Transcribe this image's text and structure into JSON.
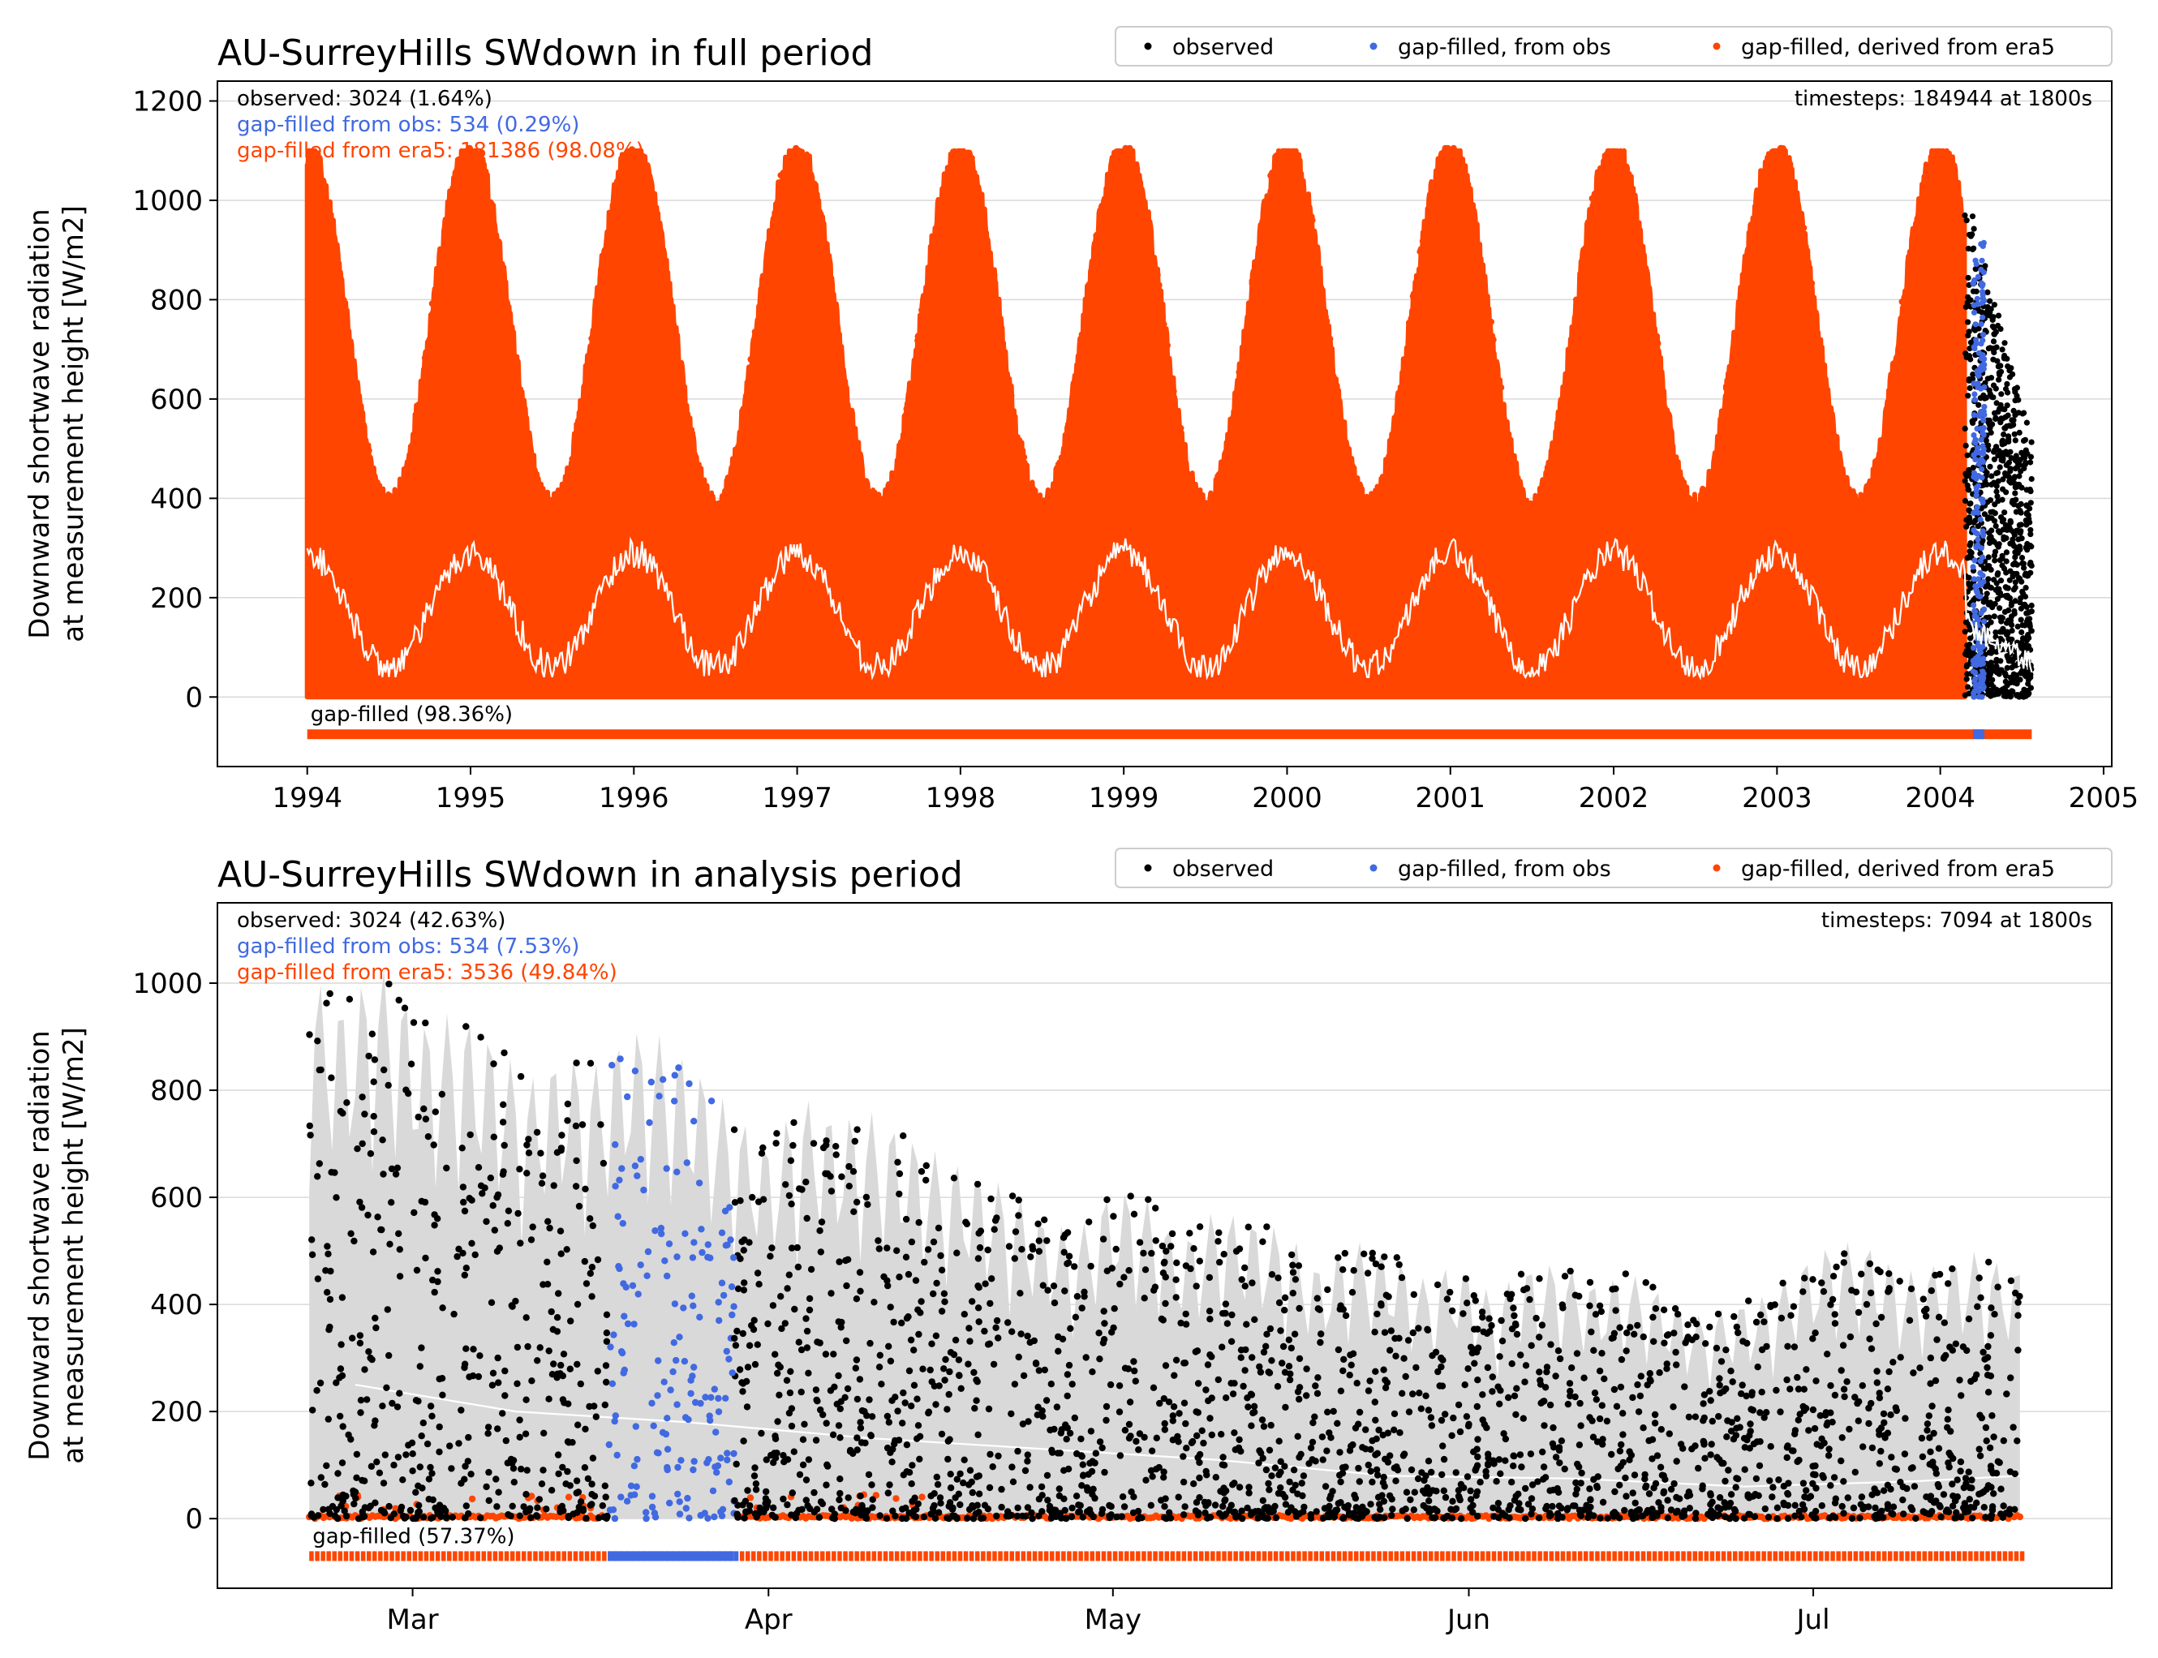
{
  "colors": {
    "observed": "#000000",
    "gapfilled_obs": "#4169e1",
    "gapfilled_era5": "#ff4500",
    "fill_range": "#d9d9d9",
    "smooth_line": "#ffffff",
    "grid": "#d9d9d9"
  },
  "chart_data": [
    {
      "type": "scatter",
      "title": "AU-SurreyHills SWdown in full period",
      "ylabel": "Downward shortwave radiation\nat measurement height [W/m2]",
      "xlim": [
        1993.45,
        2005.05
      ],
      "ylim": [
        -140,
        1240
      ],
      "yticks": [
        0,
        200,
        400,
        600,
        800,
        1000,
        1200
      ],
      "xticks": [
        {
          "v": 1994,
          "label": "1994"
        },
        {
          "v": 1995,
          "label": "1995"
        },
        {
          "v": 1996,
          "label": "1996"
        },
        {
          "v": 1997,
          "label": "1997"
        },
        {
          "v": 1998,
          "label": "1998"
        },
        {
          "v": 1999,
          "label": "1999"
        },
        {
          "v": 2000,
          "label": "2000"
        },
        {
          "v": 2001,
          "label": "2001"
        },
        {
          "v": 2002,
          "label": "2002"
        },
        {
          "v": 2003,
          "label": "2003"
        },
        {
          "v": 2004,
          "label": "2004"
        },
        {
          "v": 2005,
          "label": "2005"
        }
      ],
      "grid": "horizontal",
      "legend": {
        "placement": "top-right, above axes",
        "entries": [
          "observed",
          "gap-filled, from obs",
          "gap-filled, derived from era5"
        ]
      },
      "annotations": {
        "observed": "observed: 3024 (1.64%)",
        "gap_obs": "gap-filled from obs: 534 (0.29%)",
        "gap_era5": "gap-filled from era5: 181386 (98.08%)",
        "timesteps": "timesteps: 184944 at 1800s",
        "gapfilled": "gap-filled (98.36%)"
      },
      "timesteps": 184944,
      "step_seconds": 1800,
      "counts": {
        "observed": 3024,
        "gapfilled_obs": 534,
        "gapfilled_era5": 181386
      },
      "x_range": [
        1994.0,
        2004.56
      ],
      "seasonal_envelope": {
        "series": "gap-filled, derived from era5",
        "x_range": [
          1994.0,
          2004.15
        ],
        "peak_max": 1100,
        "trough_max": 380,
        "peak_phase": "start of each year"
      },
      "observed_range": {
        "x_range": [
          2004.15,
          2004.56
        ],
        "y_range": [
          0,
          1030
        ]
      },
      "gapfilled_obs_range": {
        "x_range": [
          2004.2,
          2004.27
        ],
        "y_range": [
          0,
          920
        ]
      },
      "daily_mean_line": {
        "peak": 330,
        "trough": 60
      }
    },
    {
      "type": "scatter",
      "title": "AU-SurreyHills SWdown in analysis period",
      "ylabel": "Downward shortwave radiation\nat measurement height [W/m2]",
      "xlim": [
        "2004-02-13",
        "2004-07-27"
      ],
      "ylim": [
        -130,
        1150
      ],
      "yticks": [
        0,
        200,
        400,
        600,
        800,
        1000
      ],
      "xticks": [
        {
          "date": "2004-03-01",
          "label": "Mar"
        },
        {
          "date": "2004-04-01",
          "label": "Apr"
        },
        {
          "date": "2004-05-01",
          "label": "May"
        },
        {
          "date": "2004-06-01",
          "label": "Jun"
        },
        {
          "date": "2004-07-01",
          "label": "Jul"
        }
      ],
      "grid": "horizontal",
      "legend": {
        "placement": "top-right, above axes",
        "entries": [
          "observed",
          "gap-filled, from obs",
          "gap-filled, derived from era5"
        ]
      },
      "annotations": {
        "observed": "observed: 3024 (42.63%)",
        "gap_obs": "gap-filled from obs: 534 (7.53%)",
        "gap_era5": "gap-filled from era5: 3536 (49.84%)",
        "timesteps": "timesteps: 7094 at 1800s",
        "gapfilled": "gap-filled (57.37%)"
      },
      "timesteps": 7094,
      "step_seconds": 1800,
      "counts": {
        "observed": 3024,
        "gapfilled_obs": 534,
        "gapfilled_era5": 3536
      },
      "x_range": [
        "2004-02-21",
        "2004-07-19"
      ],
      "gapfilled_obs_period": [
        "2004-03-18",
        "2004-03-29"
      ],
      "daily_peaks": {
        "dates": [
          "2004-02-21",
          "2004-02-24",
          "2004-02-27",
          "2004-03-02",
          "2004-03-05",
          "2004-03-08",
          "2004-03-11",
          "2004-03-14",
          "2004-03-17",
          "2004-03-20",
          "2004-03-23",
          "2004-03-26",
          "2004-03-29",
          "2004-04-01",
          "2004-04-04",
          "2004-04-07",
          "2004-04-10",
          "2004-04-13",
          "2004-04-16",
          "2004-04-19",
          "2004-04-22",
          "2004-04-25",
          "2004-04-28",
          "2004-05-01",
          "2004-05-04",
          "2004-05-07",
          "2004-05-10",
          "2004-05-13",
          "2004-05-16",
          "2004-05-19",
          "2004-05-22",
          "2004-05-25",
          "2004-05-28",
          "2004-05-31",
          "2004-06-03",
          "2004-06-06",
          "2004-06-09",
          "2004-06-12",
          "2004-06-15",
          "2004-06-18",
          "2004-06-21",
          "2004-06-24",
          "2004-06-27",
          "2004-06-30",
          "2004-07-03",
          "2004-07-06",
          "2004-07-09",
          "2004-07-12",
          "2004-07-15",
          "2004-07-18"
        ],
        "values": [
          1020,
          960,
          1040,
          930,
          950,
          900,
          820,
          870,
          850,
          920,
          900,
          840,
          760,
          700,
          790,
          750,
          760,
          720,
          680,
          650,
          620,
          560,
          540,
          620,
          600,
          520,
          580,
          560,
          540,
          470,
          520,
          500,
          450,
          480,
          420,
          470,
          480,
          440,
          460,
          420,
          380,
          400,
          420,
          480,
          520,
          510,
          460,
          480,
          500,
          470
        ]
      },
      "daily_mean_line": {
        "dates": [
          "2004-02-25",
          "2004-03-10",
          "2004-03-25",
          "2004-04-10",
          "2004-04-25",
          "2004-05-10",
          "2004-05-25",
          "2004-06-10",
          "2004-06-25",
          "2004-07-10",
          "2004-07-19"
        ],
        "values": [
          250,
          200,
          180,
          150,
          130,
          110,
          80,
          75,
          60,
          70,
          80
        ]
      }
    }
  ]
}
